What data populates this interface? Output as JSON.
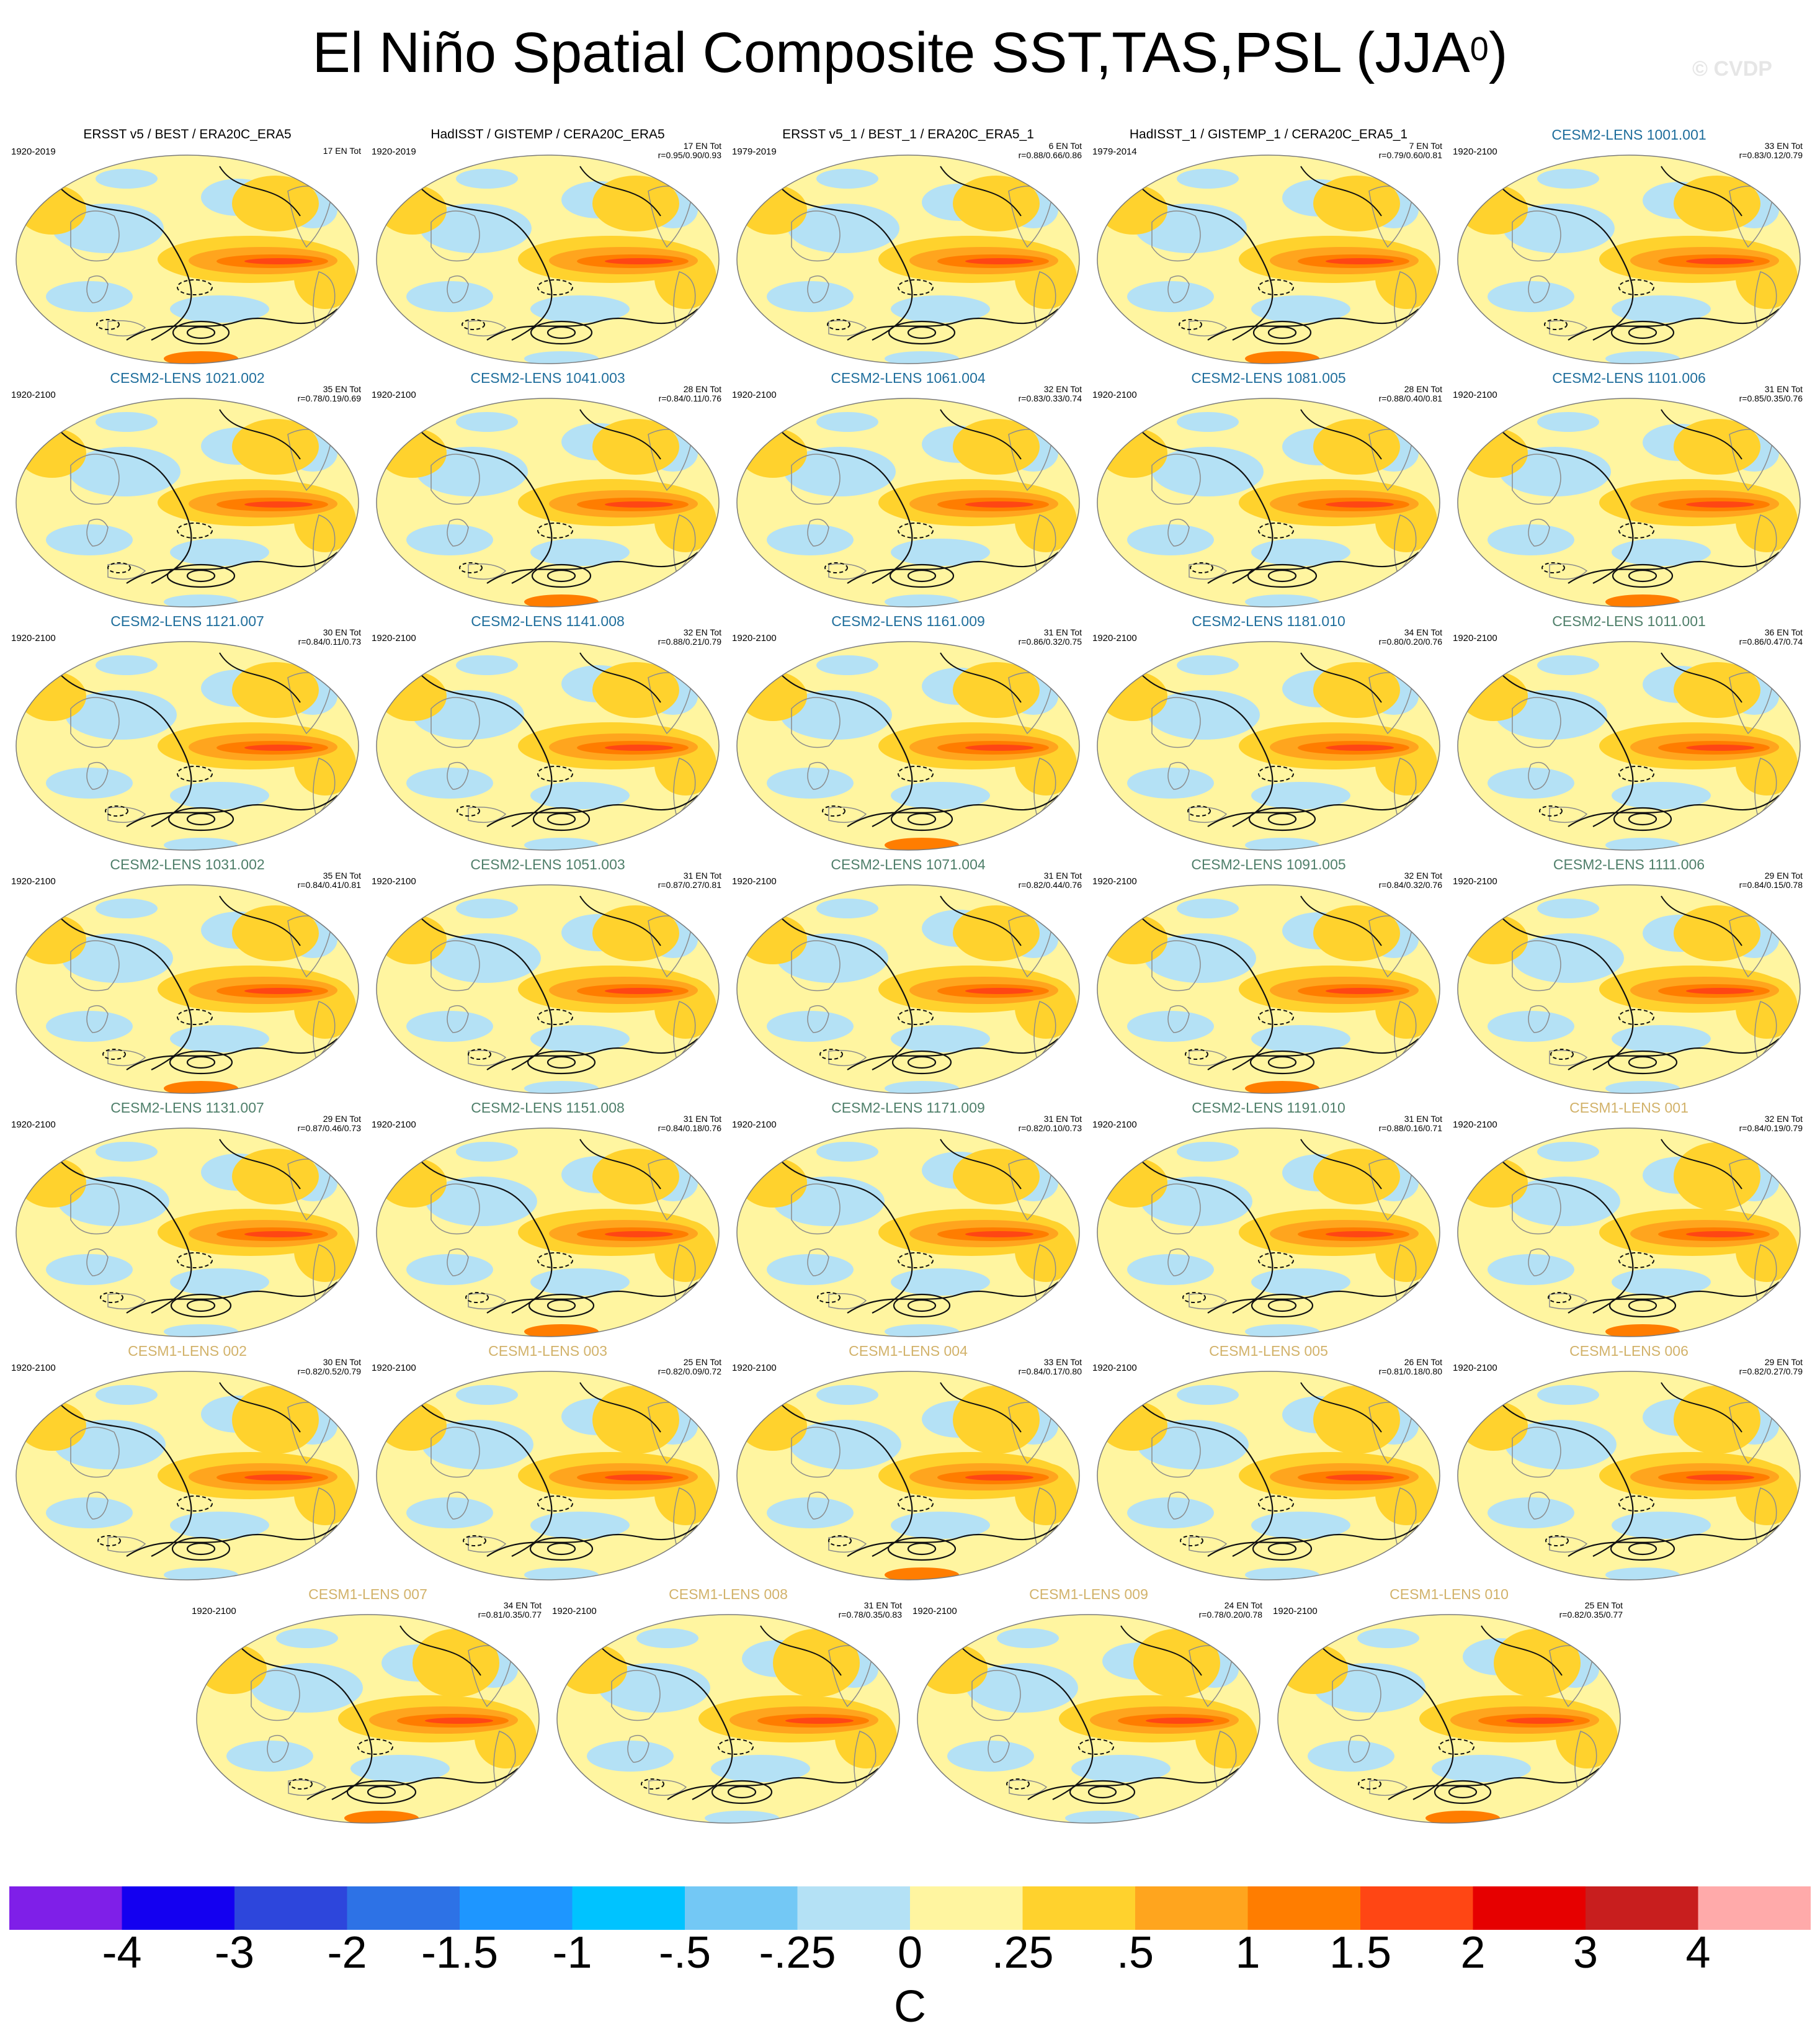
{
  "title": {
    "text": "El Niño Spatial Composite SST,TAS,PSL (JJA",
    "superscript": "0",
    "close": ")"
  },
  "credit": "© CVDP",
  "colors": {
    "obs_title": "#000000",
    "cesm2_a": "#1f6e9c",
    "cesm2_b": "#4f7f6a",
    "cesm1": "#d2b26a"
  },
  "panels": [
    {
      "title": "ERSST v5 / BEST / ERA20C_ERA5",
      "years": "1920-2019",
      "count": "17 EN Tot",
      "corr": "",
      "group": "obs"
    },
    {
      "title": "HadISST / GISTEMP / CERA20C_ERA5",
      "years": "1920-2019",
      "count": "17 EN Tot",
      "corr": "r=0.95/0.90/0.93",
      "group": "obs"
    },
    {
      "title": "ERSST v5_1 / BEST_1 / ERA20C_ERA5_1",
      "years": "1979-2019",
      "count": "6 EN Tot",
      "corr": "r=0.88/0.66/0.86",
      "group": "obs"
    },
    {
      "title": "HadISST_1 / GISTEMP_1 / CERA20C_ERA5_1",
      "years": "1979-2014",
      "count": "7 EN Tot",
      "corr": "r=0.79/0.60/0.81",
      "group": "obs"
    },
    {
      "title": "CESM2-LENS 1001.001",
      "years": "1920-2100",
      "count": "33 EN Tot",
      "corr": "r=0.83/0.12/0.79",
      "group": "cesm2_a"
    },
    {
      "title": "CESM2-LENS 1021.002",
      "years": "1920-2100",
      "count": "35 EN Tot",
      "corr": "r=0.78/0.19/0.69",
      "group": "cesm2_a"
    },
    {
      "title": "CESM2-LENS 1041.003",
      "years": "1920-2100",
      "count": "28 EN Tot",
      "corr": "r=0.84/0.11/0.76",
      "group": "cesm2_a"
    },
    {
      "title": "CESM2-LENS 1061.004",
      "years": "1920-2100",
      "count": "32 EN Tot",
      "corr": "r=0.83/0.33/0.74",
      "group": "cesm2_a"
    },
    {
      "title": "CESM2-LENS 1081.005",
      "years": "1920-2100",
      "count": "28 EN Tot",
      "corr": "r=0.88/0.40/0.81",
      "group": "cesm2_a"
    },
    {
      "title": "CESM2-LENS 1101.006",
      "years": "1920-2100",
      "count": "31 EN Tot",
      "corr": "r=0.85/0.35/0.76",
      "group": "cesm2_a"
    },
    {
      "title": "CESM2-LENS 1121.007",
      "years": "1920-2100",
      "count": "30 EN Tot",
      "corr": "r=0.84/0.11/0.73",
      "group": "cesm2_a"
    },
    {
      "title": "CESM2-LENS 1141.008",
      "years": "1920-2100",
      "count": "32 EN Tot",
      "corr": "r=0.88/0.21/0.79",
      "group": "cesm2_a"
    },
    {
      "title": "CESM2-LENS 1161.009",
      "years": "1920-2100",
      "count": "31 EN Tot",
      "corr": "r=0.86/0.32/0.75",
      "group": "cesm2_a"
    },
    {
      "title": "CESM2-LENS 1181.010",
      "years": "1920-2100",
      "count": "34 EN Tot",
      "corr": "r=0.80/0.20/0.76",
      "group": "cesm2_a"
    },
    {
      "title": "CESM2-LENS 1011.001",
      "years": "1920-2100",
      "count": "36 EN Tot",
      "corr": "r=0.86/0.47/0.74",
      "group": "cesm2_b"
    },
    {
      "title": "CESM2-LENS 1031.002",
      "years": "1920-2100",
      "count": "35 EN Tot",
      "corr": "r=0.84/0.41/0.81",
      "group": "cesm2_b"
    },
    {
      "title": "CESM2-LENS 1051.003",
      "years": "1920-2100",
      "count": "31 EN Tot",
      "corr": "r=0.87/0.27/0.81",
      "group": "cesm2_b"
    },
    {
      "title": "CESM2-LENS 1071.004",
      "years": "1920-2100",
      "count": "31 EN Tot",
      "corr": "r=0.82/0.44/0.76",
      "group": "cesm2_b"
    },
    {
      "title": "CESM2-LENS 1091.005",
      "years": "1920-2100",
      "count": "32 EN Tot",
      "corr": "r=0.84/0.32/0.76",
      "group": "cesm2_b"
    },
    {
      "title": "CESM2-LENS 1111.006",
      "years": "1920-2100",
      "count": "29 EN Tot",
      "corr": "r=0.84/0.15/0.78",
      "group": "cesm2_b"
    },
    {
      "title": "CESM2-LENS 1131.007",
      "years": "1920-2100",
      "count": "29 EN Tot",
      "corr": "r=0.87/0.46/0.73",
      "group": "cesm2_b"
    },
    {
      "title": "CESM2-LENS 1151.008",
      "years": "1920-2100",
      "count": "31 EN Tot",
      "corr": "r=0.84/0.18/0.76",
      "group": "cesm2_b"
    },
    {
      "title": "CESM2-LENS 1171.009",
      "years": "1920-2100",
      "count": "31 EN Tot",
      "corr": "r=0.82/0.10/0.73",
      "group": "cesm2_b"
    },
    {
      "title": "CESM2-LENS 1191.010",
      "years": "1920-2100",
      "count": "31 EN Tot",
      "corr": "r=0.88/0.16/0.71",
      "group": "cesm2_b"
    },
    {
      "title": "CESM1-LENS 001",
      "years": "1920-2100",
      "count": "32 EN Tot",
      "corr": "r=0.84/0.19/0.79",
      "group": "cesm1"
    },
    {
      "title": "CESM1-LENS 002",
      "years": "1920-2100",
      "count": "30 EN Tot",
      "corr": "r=0.82/0.52/0.79",
      "group": "cesm1"
    },
    {
      "title": "CESM1-LENS 003",
      "years": "1920-2100",
      "count": "25 EN Tot",
      "corr": "r=0.82/0.09/0.72",
      "group": "cesm1"
    },
    {
      "title": "CESM1-LENS 004",
      "years": "1920-2100",
      "count": "33 EN Tot",
      "corr": "r=0.84/0.17/0.80",
      "group": "cesm1"
    },
    {
      "title": "CESM1-LENS 005",
      "years": "1920-2100",
      "count": "26 EN Tot",
      "corr": "r=0.81/0.18/0.80",
      "group": "cesm1"
    },
    {
      "title": "CESM1-LENS 006",
      "years": "1920-2100",
      "count": "29 EN Tot",
      "corr": "r=0.82/0.27/0.79",
      "group": "cesm1"
    },
    {
      "title": "CESM1-LENS 007",
      "years": "1920-2100",
      "count": "34 EN Tot",
      "corr": "r=0.81/0.35/0.77",
      "group": "cesm1"
    },
    {
      "title": "CESM1-LENS 008",
      "years": "1920-2100",
      "count": "31 EN Tot",
      "corr": "r=0.78/0.35/0.83",
      "group": "cesm1"
    },
    {
      "title": "CESM1-LENS 009",
      "years": "1920-2100",
      "count": "24 EN Tot",
      "corr": "r=0.78/0.20/0.78",
      "group": "cesm1"
    },
    {
      "title": "CESM1-LENS 010",
      "years": "1920-2100",
      "count": "25 EN Tot",
      "corr": "r=0.82/0.35/0.77",
      "group": "cesm1"
    }
  ],
  "colorbar": {
    "colors": [
      "#7f1fe8",
      "#1400f0",
      "#2d46dc",
      "#2d72e6",
      "#1e96ff",
      "#00c3ff",
      "#73c8f5",
      "#b4e1f5",
      "#fff5a0",
      "#ffd22d",
      "#ffa51e",
      "#ff7d00",
      "#ff4614",
      "#e60000",
      "#c81e1e",
      "#ffaaaa"
    ],
    "labels": [
      "-4",
      "-3",
      "-2",
      "-1.5",
      "-1",
      "-.5",
      "-.25",
      "0",
      ".25",
      ".5",
      "1",
      "1.5",
      "2",
      "3",
      "4"
    ],
    "unit": "C"
  }
}
